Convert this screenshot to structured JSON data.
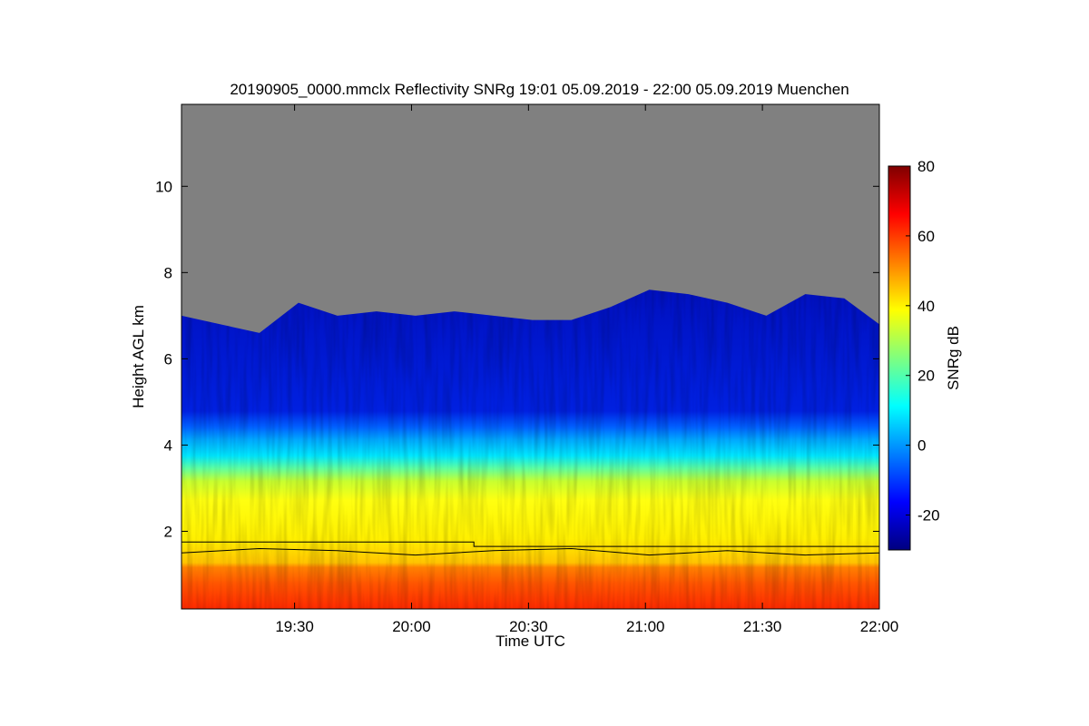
{
  "chart_data": {
    "type": "heatmap",
    "title": "20190905_0000.mmclx Reflectivity SNRg   19:01 05.09.2019 - 22:00 05.09.2019 Muenchen",
    "xlabel": "Time UTC",
    "ylabel": "Height AGL km",
    "x_range": [
      "19:01",
      "22:00"
    ],
    "y_range_km": [
      0.2,
      11.9
    ],
    "x_ticks": [
      {
        "label": "19:30",
        "minutes": 29
      },
      {
        "label": "20:00",
        "minutes": 59
      },
      {
        "label": "20:30",
        "minutes": 89
      },
      {
        "label": "21:00",
        "minutes": 119
      },
      {
        "label": "21:30",
        "minutes": 149
      },
      {
        "label": "22:00",
        "minutes": 179
      }
    ],
    "y_ticks": [
      {
        "label": "2",
        "value": 2
      },
      {
        "label": "4",
        "value": 4
      },
      {
        "label": "6",
        "value": 6
      },
      {
        "label": "8",
        "value": 8
      },
      {
        "label": "10",
        "value": 10
      }
    ],
    "colorbar": {
      "label": "SNRg dB",
      "range": [
        -30,
        80
      ],
      "ticks": [
        {
          "label": "-20",
          "value": -20
        },
        {
          "label": "0",
          "value": 0
        },
        {
          "label": "20",
          "value": 20
        },
        {
          "label": "40",
          "value": 40
        },
        {
          "label": "60",
          "value": 60
        },
        {
          "label": "80",
          "value": 80
        }
      ],
      "colormap": [
        "#00007f",
        "#0000ff",
        "#007fff",
        "#00ffff",
        "#7fff7f",
        "#ffff00",
        "#ff7f00",
        "#ff0000",
        "#7f0000"
      ]
    },
    "no_signal_color": "#808080",
    "cloud_top_km": [
      {
        "minutes": 0,
        "value": 7.0
      },
      {
        "minutes": 10,
        "value": 6.8
      },
      {
        "minutes": 20,
        "value": 6.6
      },
      {
        "minutes": 30,
        "value": 7.3
      },
      {
        "minutes": 40,
        "value": 7.0
      },
      {
        "minutes": 50,
        "value": 7.1
      },
      {
        "minutes": 60,
        "value": 7.0
      },
      {
        "minutes": 70,
        "value": 7.1
      },
      {
        "minutes": 80,
        "value": 7.0
      },
      {
        "minutes": 90,
        "value": 6.9
      },
      {
        "minutes": 100,
        "value": 6.9
      },
      {
        "minutes": 110,
        "value": 7.2
      },
      {
        "minutes": 120,
        "value": 7.6
      },
      {
        "minutes": 130,
        "value": 7.5
      },
      {
        "minutes": 140,
        "value": 7.3
      },
      {
        "minutes": 150,
        "value": 7.0
      },
      {
        "minutes": 160,
        "value": 7.5
      },
      {
        "minutes": 170,
        "value": 7.4
      },
      {
        "minutes": 179,
        "value": 6.8
      }
    ],
    "boundary_layer_top_km": [
      {
        "minutes": 0,
        "value": 1.5
      },
      {
        "minutes": 20,
        "value": 1.6
      },
      {
        "minutes": 40,
        "value": 1.55
      },
      {
        "minutes": 60,
        "value": 1.45
      },
      {
        "minutes": 80,
        "value": 1.55
      },
      {
        "minutes": 100,
        "value": 1.6
      },
      {
        "minutes": 120,
        "value": 1.45
      },
      {
        "minutes": 140,
        "value": 1.55
      },
      {
        "minutes": 150,
        "value": 1.5
      },
      {
        "minutes": 160,
        "value": 1.45
      },
      {
        "minutes": 179,
        "value": 1.5
      }
    ],
    "step_line_km": [
      {
        "minutes": 0,
        "value": 1.75
      },
      {
        "minutes": 75,
        "value": 1.75
      },
      {
        "minutes": 75,
        "value": 1.65
      },
      {
        "minutes": 179,
        "value": 1.65
      }
    ]
  }
}
